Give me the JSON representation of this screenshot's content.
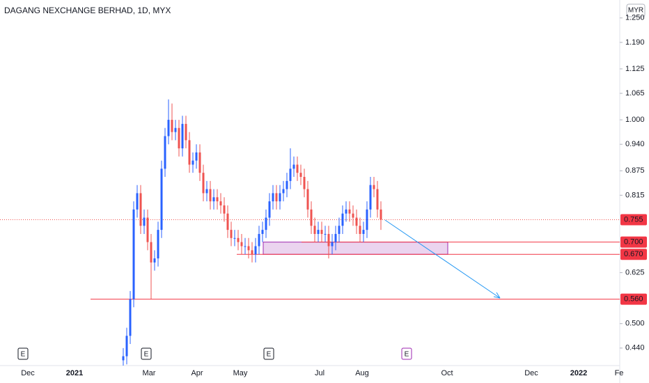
{
  "chart_data": {
    "type": "candlestick",
    "title": "DAGANG NEXCHANGE BERHAD, 1D, MYX",
    "currency": "MYR",
    "ylim": [
      0.397,
      1.294
    ],
    "yticks": [
      {
        "value": 1.25,
        "label": "1.250"
      },
      {
        "value": 1.19,
        "label": "1.190"
      },
      {
        "value": 1.125,
        "label": "1.125"
      },
      {
        "value": 1.065,
        "label": "1.065"
      },
      {
        "value": 1.0,
        "label": "1.000"
      },
      {
        "value": 0.94,
        "label": "0.940"
      },
      {
        "value": 0.875,
        "label": "0.875"
      },
      {
        "value": 0.815,
        "label": "0.815"
      },
      {
        "value": 0.625,
        "label": "0.625"
      },
      {
        "value": 0.5,
        "label": "0.500"
      },
      {
        "value": 0.44,
        "label": "0.440"
      }
    ],
    "x_labels": [
      "Dec",
      "2021",
      "Mar",
      "Apr",
      "May",
      "Jul",
      "Aug",
      "Oct",
      "Dec",
      "2022",
      "Fe"
    ],
    "up_color": "#2962ff",
    "down_color": "#ef5350",
    "candles": [
      [
        0.41,
        0.44,
        0.39,
        0.42
      ],
      [
        0.42,
        0.49,
        0.4,
        0.47
      ],
      [
        0.47,
        0.58,
        0.45,
        0.56
      ],
      [
        0.56,
        0.8,
        0.54,
        0.78
      ],
      [
        0.78,
        0.84,
        0.76,
        0.82
      ],
      [
        0.82,
        0.84,
        0.72,
        0.74
      ],
      [
        0.74,
        0.78,
        0.72,
        0.76
      ],
      [
        0.76,
        0.78,
        0.68,
        0.7
      ],
      [
        0.7,
        0.72,
        0.56,
        0.65
      ],
      [
        0.65,
        0.68,
        0.63,
        0.66
      ],
      [
        0.66,
        0.75,
        0.64,
        0.73
      ],
      [
        0.73,
        0.9,
        0.71,
        0.88
      ],
      [
        0.88,
        0.98,
        0.86,
        0.96
      ],
      [
        0.96,
        1.05,
        0.94,
        1.0
      ],
      [
        1.0,
        1.04,
        0.95,
        0.97
      ],
      [
        0.97,
        1.0,
        0.95,
        0.98
      ],
      [
        0.98,
        1.0,
        0.91,
        0.93
      ],
      [
        0.93,
        1.01,
        0.91,
        0.99
      ],
      [
        0.99,
        1.01,
        0.93,
        0.95
      ],
      [
        0.95,
        0.97,
        0.87,
        0.89
      ],
      [
        0.89,
        0.92,
        0.87,
        0.9
      ],
      [
        0.9,
        0.94,
        0.88,
        0.92
      ],
      [
        0.92,
        0.94,
        0.85,
        0.87
      ],
      [
        0.87,
        0.89,
        0.8,
        0.82
      ],
      [
        0.82,
        0.85,
        0.8,
        0.83
      ],
      [
        0.83,
        0.85,
        0.78,
        0.8
      ],
      [
        0.8,
        0.83,
        0.78,
        0.81
      ],
      [
        0.81,
        0.83,
        0.78,
        0.8
      ],
      [
        0.8,
        0.82,
        0.77,
        0.79
      ],
      [
        0.79,
        0.81,
        0.75,
        0.77
      ],
      [
        0.77,
        0.79,
        0.71,
        0.73
      ],
      [
        0.73,
        0.75,
        0.69,
        0.71
      ],
      [
        0.71,
        0.73,
        0.69,
        0.71
      ],
      [
        0.71,
        0.73,
        0.68,
        0.7
      ],
      [
        0.7,
        0.72,
        0.67,
        0.69
      ],
      [
        0.69,
        0.71,
        0.67,
        0.69
      ],
      [
        0.69,
        0.71,
        0.66,
        0.68
      ],
      [
        0.68,
        0.7,
        0.65,
        0.67
      ],
      [
        0.67,
        0.71,
        0.65,
        0.69
      ],
      [
        0.69,
        0.74,
        0.67,
        0.72
      ],
      [
        0.72,
        0.75,
        0.7,
        0.73
      ],
      [
        0.73,
        0.78,
        0.71,
        0.76
      ],
      [
        0.76,
        0.82,
        0.74,
        0.8
      ],
      [
        0.8,
        0.84,
        0.78,
        0.82
      ],
      [
        0.82,
        0.84,
        0.78,
        0.8
      ],
      [
        0.8,
        0.84,
        0.78,
        0.82
      ],
      [
        0.82,
        0.85,
        0.8,
        0.83
      ],
      [
        0.83,
        0.87,
        0.81,
        0.85
      ],
      [
        0.85,
        0.93,
        0.83,
        0.88
      ],
      [
        0.88,
        0.91,
        0.86,
        0.89
      ],
      [
        0.89,
        0.91,
        0.85,
        0.87
      ],
      [
        0.87,
        0.89,
        0.84,
        0.86
      ],
      [
        0.86,
        0.88,
        0.81,
        0.83
      ],
      [
        0.83,
        0.85,
        0.76,
        0.78
      ],
      [
        0.78,
        0.8,
        0.72,
        0.74
      ],
      [
        0.74,
        0.76,
        0.7,
        0.72
      ],
      [
        0.72,
        0.75,
        0.7,
        0.73
      ],
      [
        0.73,
        0.75,
        0.7,
        0.72
      ],
      [
        0.72,
        0.74,
        0.7,
        0.72
      ],
      [
        0.72,
        0.74,
        0.66,
        0.69
      ],
      [
        0.69,
        0.72,
        0.67,
        0.7
      ],
      [
        0.7,
        0.74,
        0.68,
        0.72
      ],
      [
        0.72,
        0.76,
        0.7,
        0.74
      ],
      [
        0.74,
        0.79,
        0.72,
        0.77
      ],
      [
        0.77,
        0.8,
        0.75,
        0.78
      ],
      [
        0.78,
        0.8,
        0.75,
        0.77
      ],
      [
        0.77,
        0.79,
        0.74,
        0.76
      ],
      [
        0.76,
        0.78,
        0.72,
        0.74
      ],
      [
        0.74,
        0.76,
        0.7,
        0.72
      ],
      [
        0.72,
        0.75,
        0.7,
        0.73
      ],
      [
        0.73,
        0.8,
        0.71,
        0.78
      ],
      [
        0.78,
        0.86,
        0.76,
        0.84
      ],
      [
        0.84,
        0.86,
        0.81,
        0.83
      ],
      [
        0.83,
        0.85,
        0.76,
        0.78
      ],
      [
        0.78,
        0.8,
        0.73,
        0.755
      ]
    ],
    "last_price": {
      "value": 0.755,
      "label": "0.755"
    },
    "levels": [
      {
        "value": 0.7,
        "label": "0.700"
      },
      {
        "value": 0.67,
        "label": "0.670"
      },
      {
        "value": 0.56,
        "label": "0.560"
      }
    ],
    "events": [
      "E",
      "E",
      "E",
      "E"
    ]
  }
}
